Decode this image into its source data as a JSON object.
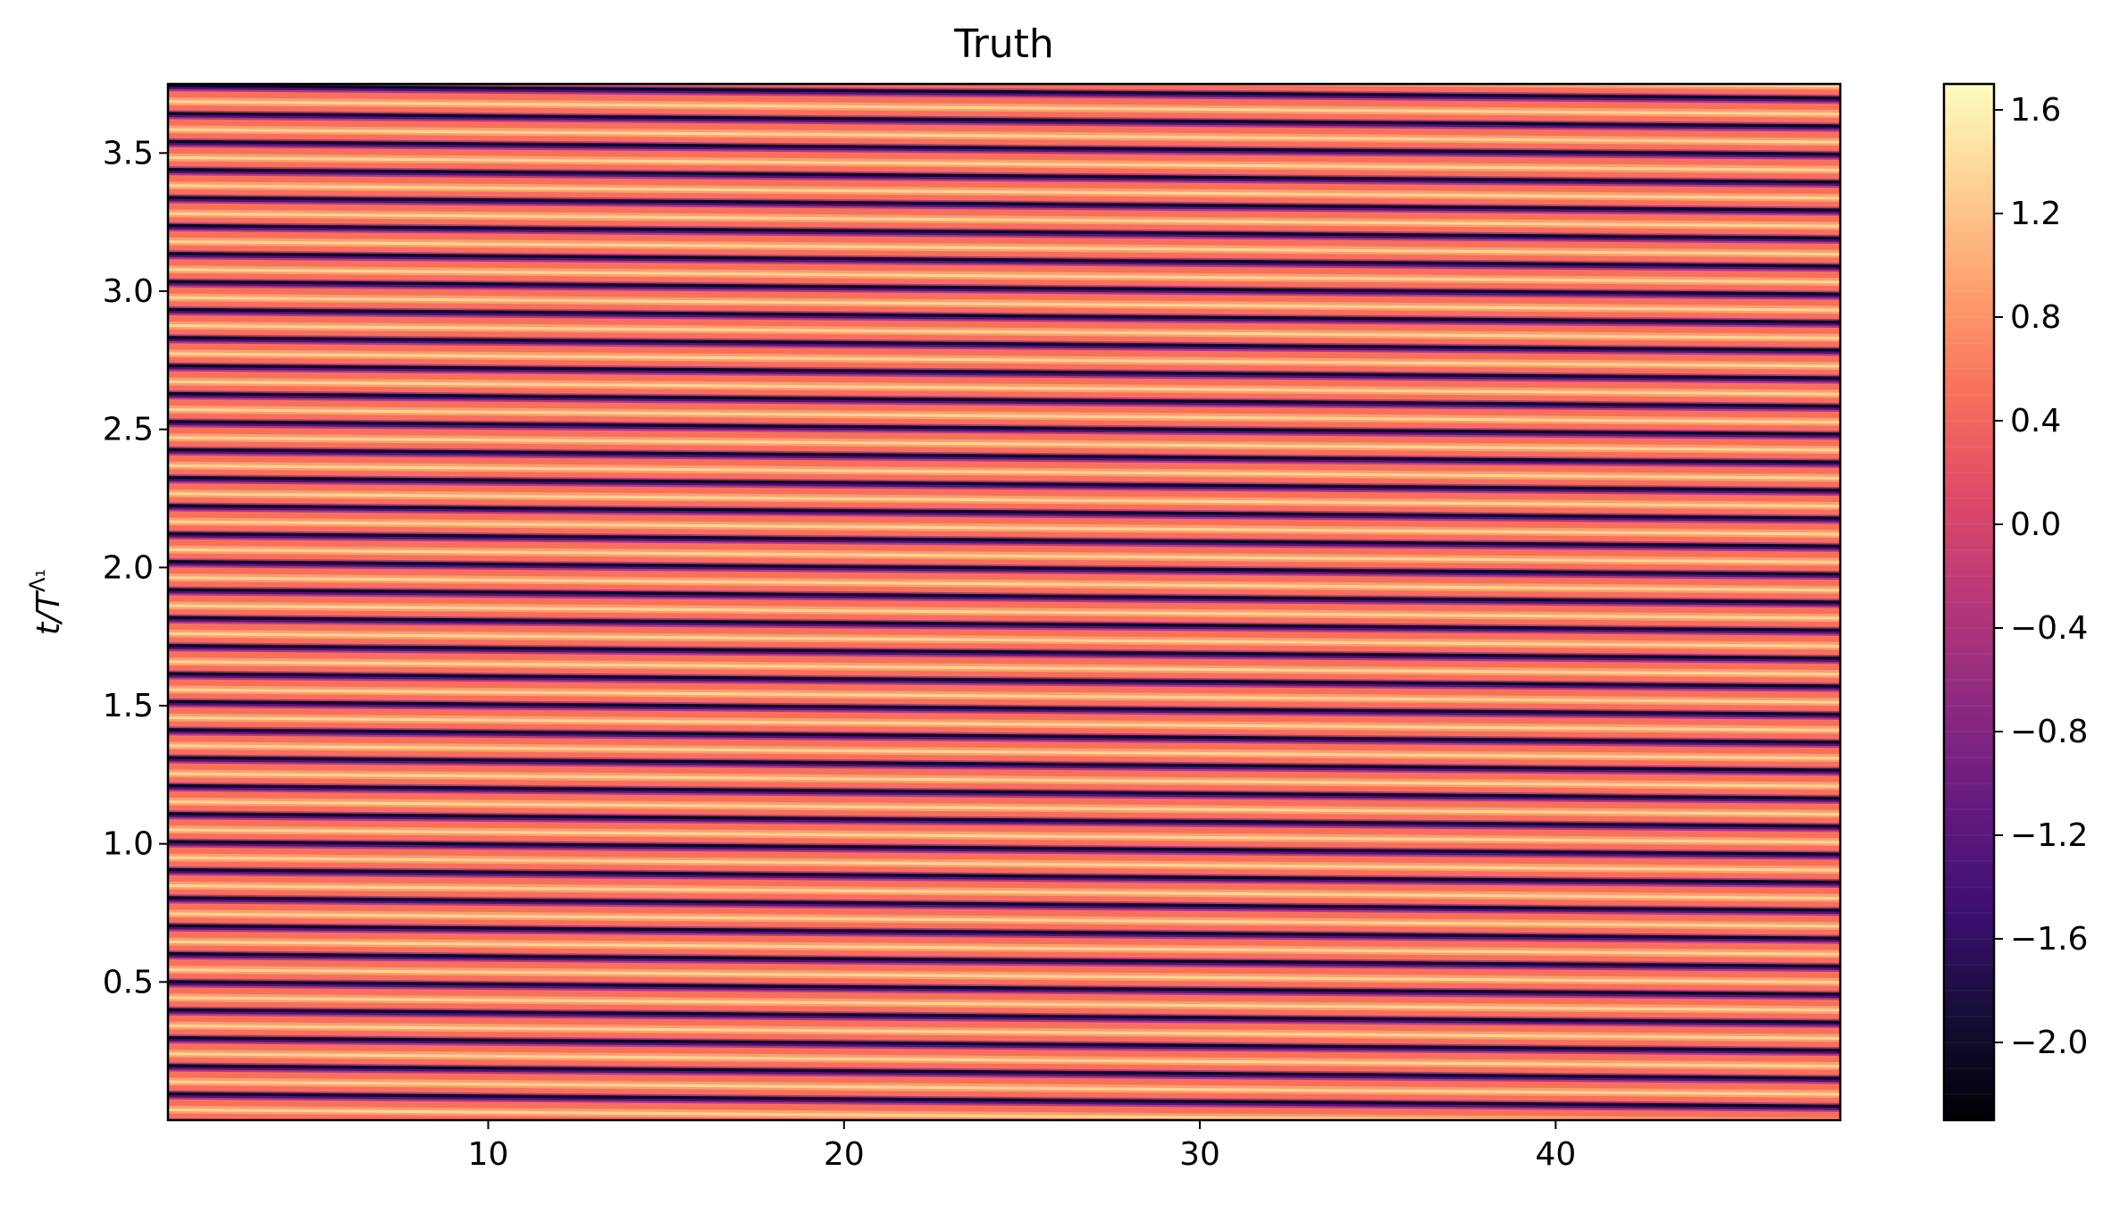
{
  "chart_data": {
    "type": "heatmap",
    "title": "Truth",
    "xlabel": "",
    "ylabel": "t/T^Λ1",
    "ylabel_main": "t/T",
    "ylabel_sup": "Λ₁",
    "xlim": [
      1,
      48
    ],
    "ylim": [
      0.0,
      3.75
    ],
    "xticks": [
      10,
      20,
      30,
      40
    ],
    "yticks": [
      0.5,
      1.0,
      1.5,
      2.0,
      2.5,
      3.0,
      3.5
    ],
    "ytick_labels": [
      "0.5",
      "1.0",
      "1.5",
      "2.0",
      "2.5",
      "3.0",
      "3.5"
    ],
    "colormap": "magma",
    "colorbar": {
      "min": -2.3,
      "max": 1.7,
      "ticks": [
        -2.0,
        -1.6,
        -1.2,
        -0.8,
        -0.4,
        0.0,
        0.4,
        0.8,
        1.2,
        1.6
      ],
      "tick_labels": [
        "−2.0",
        "−1.6",
        "−1.2",
        "−0.8",
        "−0.4",
        "0.0",
        "0.4",
        "0.8",
        "1.2",
        "1.6"
      ]
    },
    "pattern": {
      "description_values": "traveling wave, value bands nearly horizontal",
      "stripe_count": 37,
      "amplitude_min": -2.3,
      "amplitude_max": 1.7
    }
  }
}
